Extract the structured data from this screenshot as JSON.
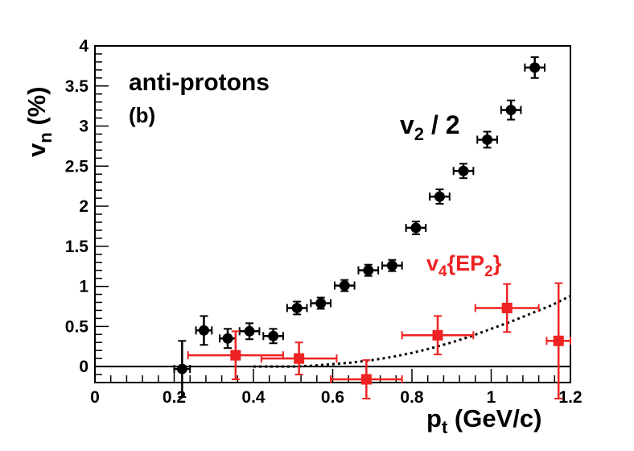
{
  "chart_data": {
    "type": "scatter",
    "title": "",
    "panel_label": "anti-protons",
    "panel_tag": "(b)",
    "xlabel": {
      "main": "p",
      "sub": "t",
      "suffix": " (GeV/c)"
    },
    "ylabel": {
      "main": "v",
      "sub": "n",
      "suffix": " (%)"
    },
    "xlim": [
      0,
      1.2
    ],
    "ylim": [
      -0.2,
      4
    ],
    "x_major_ticks": [
      0,
      0.2,
      0.4,
      0.6,
      0.8,
      1.0,
      1.2
    ],
    "x_tick_labels": [
      "0",
      "0.2",
      "0.4",
      "0.6",
      "0.8",
      "1",
      "1.2"
    ],
    "y_major_ticks": [
      0,
      0.5,
      1,
      1.5,
      2,
      2.5,
      3,
      3.5,
      4
    ],
    "y_tick_labels": [
      "0",
      "0.5",
      "1",
      "1.5",
      "2",
      "2.5",
      "3",
      "3.5",
      "4"
    ],
    "zero_line": true,
    "grid": false,
    "series": [
      {
        "name": "v2 / 2",
        "label_main": "v",
        "label_sub": "2",
        "label_suffix": " / 2",
        "color": "#000000",
        "marker": "circle",
        "points": [
          {
            "x": 0.22,
            "y": -0.03,
            "xerr": 0.02,
            "yerr": 0.35
          },
          {
            "x": 0.275,
            "y": 0.45,
            "xerr": 0.02,
            "yerr": 0.18
          },
          {
            "x": 0.335,
            "y": 0.35,
            "xerr": 0.02,
            "yerr": 0.12
          },
          {
            "x": 0.39,
            "y": 0.44,
            "xerr": 0.025,
            "yerr": 0.1
          },
          {
            "x": 0.45,
            "y": 0.38,
            "xerr": 0.025,
            "yerr": 0.09
          },
          {
            "x": 0.51,
            "y": 0.73,
            "xerr": 0.025,
            "yerr": 0.08
          },
          {
            "x": 0.57,
            "y": 0.79,
            "xerr": 0.025,
            "yerr": 0.07
          },
          {
            "x": 0.63,
            "y": 1.01,
            "xerr": 0.025,
            "yerr": 0.07
          },
          {
            "x": 0.69,
            "y": 1.2,
            "xerr": 0.025,
            "yerr": 0.07
          },
          {
            "x": 0.75,
            "y": 1.26,
            "xerr": 0.025,
            "yerr": 0.07
          },
          {
            "x": 0.81,
            "y": 1.73,
            "xerr": 0.025,
            "yerr": 0.08
          },
          {
            "x": 0.87,
            "y": 2.12,
            "xerr": 0.025,
            "yerr": 0.09
          },
          {
            "x": 0.93,
            "y": 2.44,
            "xerr": 0.025,
            "yerr": 0.09
          },
          {
            "x": 0.99,
            "y": 2.83,
            "xerr": 0.025,
            "yerr": 0.1
          },
          {
            "x": 1.05,
            "y": 3.2,
            "xerr": 0.025,
            "yerr": 0.12
          },
          {
            "x": 1.11,
            "y": 3.73,
            "xerr": 0.025,
            "yerr": 0.13
          }
        ]
      },
      {
        "name": "v4{EP2}",
        "label_main": "v",
        "label_sub": "4",
        "label_mid": "{EP",
        "label_sub2": "2",
        "label_end": "}",
        "color": "#ee2222",
        "marker": "square",
        "points": [
          {
            "x": 0.355,
            "y": 0.14,
            "xerr": 0.12,
            "yerr": 0.3
          },
          {
            "x": 0.515,
            "y": 0.1,
            "xerr": 0.095,
            "yerr": 0.2
          },
          {
            "x": 0.685,
            "y": -0.16,
            "xerr": 0.09,
            "yerr": 0.24
          },
          {
            "x": 0.865,
            "y": 0.39,
            "xerr": 0.09,
            "yerr": 0.24
          },
          {
            "x": 1.04,
            "y": 0.73,
            "xerr": 0.08,
            "yerr": 0.3
          },
          {
            "x": 1.17,
            "y": 0.32,
            "xerr": 0.03,
            "yerr": 0.72
          }
        ]
      }
    ],
    "fit_curve": {
      "name": "dotted fit",
      "style": "dotted",
      "color": "#000000",
      "x": [
        0.4,
        0.5,
        0.55,
        0.6,
        0.65,
        0.7,
        0.75,
        0.8,
        0.85,
        0.9,
        0.95,
        1.0,
        1.05,
        1.1,
        1.15,
        1.2
      ],
      "y": [
        0.0,
        0.0,
        0.01,
        0.03,
        0.05,
        0.08,
        0.12,
        0.17,
        0.23,
        0.3,
        0.38,
        0.47,
        0.56,
        0.66,
        0.76,
        0.88
      ]
    }
  }
}
